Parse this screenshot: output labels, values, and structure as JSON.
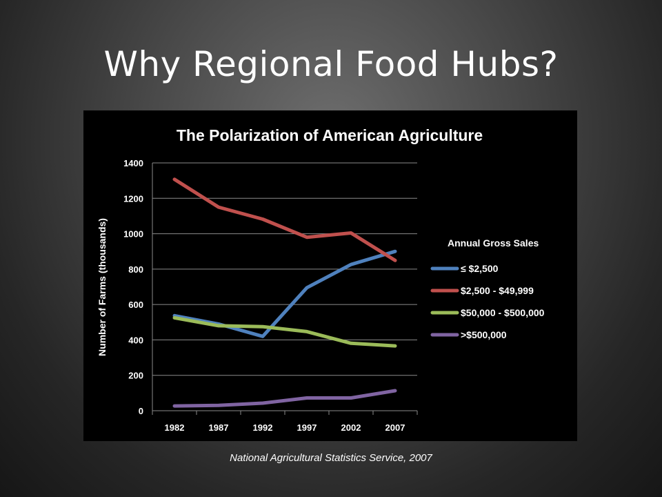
{
  "slide": {
    "title": "Why Regional Food Hubs?",
    "source": "National Agricultural Statistics Service, 2007"
  },
  "colors": {
    "background": "#000000",
    "grid": "#8c8c8c",
    "text": "#ffffff"
  },
  "chart_data": {
    "type": "line",
    "title": "The Polarization of American Agriculture",
    "xlabel": "",
    "ylabel": "Number of Farms (thousands)",
    "x": [
      "1982",
      "1987",
      "1992",
      "1997",
      "2002",
      "2007"
    ],
    "ylim": [
      0,
      1400
    ],
    "yticks": [
      "0",
      "200",
      "400",
      "600",
      "800",
      "1000",
      "1200",
      "1400"
    ],
    "grid": true,
    "legend_title": "Annual Gross Sales",
    "legend_position": "right",
    "series": [
      {
        "name": "≤ $2,500",
        "color": "#4f81bd",
        "values": [
          537,
          490,
          420,
          695,
          826,
          900
        ]
      },
      {
        "name": "$2,500 - $49,999",
        "color": "#c0504d",
        "values": [
          1307,
          1150,
          1082,
          980,
          1004,
          849
        ]
      },
      {
        "name": "$50,000 - $500,000",
        "color": "#9bbb59",
        "values": [
          525,
          480,
          475,
          447,
          381,
          366
        ]
      },
      {
        "name": ">$500,000",
        "color": "#8064a2",
        "values": [
          27,
          30,
          43,
          72,
          72,
          113
        ]
      }
    ]
  }
}
